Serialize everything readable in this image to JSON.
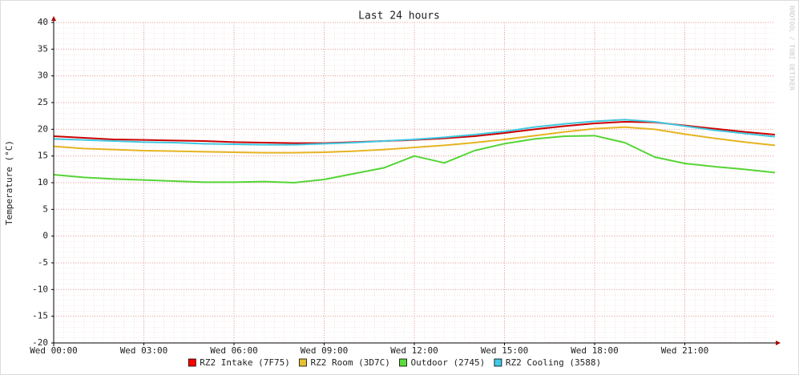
{
  "chart_data": {
    "type": "line",
    "title": "Last 24 hours",
    "y_label": "Temperature (°C)",
    "watermark": "RRDTOOL / TOBI OETIKER",
    "x": [
      0,
      1,
      2,
      3,
      4,
      5,
      6,
      7,
      8,
      9,
      10,
      11,
      12,
      13,
      14,
      15,
      16,
      17,
      18,
      19,
      20,
      21,
      22,
      23,
      24
    ],
    "xlim": [
      0,
      24
    ],
    "xticks": [
      {
        "value": 0,
        "label": "Wed 00:00"
      },
      {
        "value": 3,
        "label": "Wed 03:00"
      },
      {
        "value": 6,
        "label": "Wed 06:00"
      },
      {
        "value": 9,
        "label": "Wed 09:00"
      },
      {
        "value": 12,
        "label": "Wed 12:00"
      },
      {
        "value": 15,
        "label": "Wed 15:00"
      },
      {
        "value": 18,
        "label": "Wed 18:00"
      },
      {
        "value": 21,
        "label": "Wed 21:00"
      }
    ],
    "ylim": [
      -20,
      40
    ],
    "yticks": [
      -20,
      -15,
      -10,
      -5,
      0,
      5,
      10,
      15,
      20,
      25,
      30,
      35,
      40
    ],
    "grid": true,
    "series": [
      {
        "name": "RZ2 Intake (7F75)",
        "color": "#cc0000",
        "legend_color": "#ff0000",
        "values": [
          18.7,
          18.4,
          18.1,
          18.0,
          17.9,
          17.8,
          17.6,
          17.5,
          17.4,
          17.4,
          17.6,
          17.8,
          18.0,
          18.3,
          18.7,
          19.3,
          20.0,
          20.6,
          21.1,
          21.4,
          21.3,
          20.7,
          20.1,
          19.5,
          19.0
        ]
      },
      {
        "name": "RZ2 Room (3D7C)",
        "color": "#e6b422",
        "legend_color": "#e8c030",
        "values": [
          16.8,
          16.4,
          16.2,
          16.0,
          15.9,
          15.8,
          15.7,
          15.6,
          15.6,
          15.7,
          15.9,
          16.2,
          16.6,
          17.0,
          17.5,
          18.1,
          18.8,
          19.5,
          20.1,
          20.4,
          20.0,
          19.1,
          18.3,
          17.6,
          17.0
        ]
      },
      {
        "name": "Outdoor (2745)",
        "color": "#55d535",
        "legend_color": "#5cdc3c",
        "values": [
          11.5,
          11.0,
          10.7,
          10.5,
          10.3,
          10.1,
          10.1,
          10.2,
          10.0,
          10.6,
          11.7,
          12.8,
          15.0,
          13.7,
          16.0,
          17.3,
          18.2,
          18.7,
          18.8,
          17.5,
          14.8,
          13.6,
          13.0,
          12.5,
          11.9
        ]
      },
      {
        "name": "RZ2 Cooling (3588)",
        "color": "#40c8e0",
        "legend_color": "#44c8e8",
        "values": [
          18.2,
          18.0,
          17.8,
          17.6,
          17.5,
          17.3,
          17.2,
          17.1,
          17.1,
          17.3,
          17.5,
          17.8,
          18.1,
          18.5,
          19.0,
          19.6,
          20.4,
          21.0,
          21.5,
          21.8,
          21.4,
          20.6,
          19.8,
          19.2,
          18.6
        ]
      }
    ]
  }
}
